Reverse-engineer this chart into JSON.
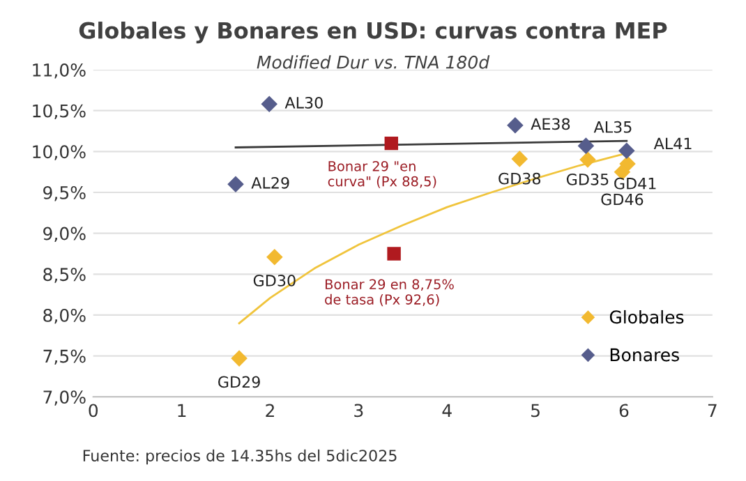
{
  "chart_data": {
    "type": "scatter",
    "title": "Globales y Bonares en USD: curvas contra MEP",
    "subtitle": "Modified Dur vs. TNA 180d",
    "series": [
      {
        "name": "Globales",
        "color": "#f2b930",
        "marker": "diamond",
        "x": [
          1.65,
          2.05,
          4.82,
          5.59,
          6.04,
          5.98
        ],
        "values": [
          7.47,
          8.71,
          9.91,
          9.9,
          9.85,
          9.75
        ]
      },
      {
        "name": "Bonares",
        "color": "#565d8c",
        "marker": "diamond",
        "x": [
          1.99,
          1.61,
          4.77,
          5.57,
          6.03
        ],
        "values": [
          10.58,
          9.6,
          10.32,
          10.07,
          10.01
        ]
      },
      {
        "color": "#b01a1f",
        "marker": "square",
        "x": [
          3.37,
          3.4
        ],
        "values": [
          10.1,
          8.75
        ]
      },
      {
        "type": "line",
        "color": "#3a3a3a",
        "marker": "none",
        "x": [
          1.61,
          6.03
        ],
        "values": [
          10.05,
          10.13
        ]
      },
      {
        "type": "line",
        "color": "#f0c43c",
        "marker": "none",
        "x": [
          1.65,
          2.0,
          2.5,
          3.0,
          3.5,
          4.0,
          4.5,
          5.0,
          5.5,
          6.03
        ],
        "values": [
          7.9,
          8.21,
          8.57,
          8.86,
          9.1,
          9.32,
          9.5,
          9.67,
          9.83,
          9.98
        ]
      }
    ],
    "xlim": [
      0,
      7
    ],
    "xticks": [
      0,
      1,
      2,
      3,
      4,
      5,
      6,
      7
    ],
    "ylim": [
      7,
      11
    ],
    "yticks": [
      {
        "value": 7,
        "label": "7,0%"
      },
      {
        "value": 7.5,
        "label": "7,5%"
      },
      {
        "value": 8,
        "label": "8,0%"
      },
      {
        "value": 8.5,
        "label": "8,5%"
      },
      {
        "value": 9,
        "label": "9,0%"
      },
      {
        "value": 9.5,
        "label": "9,5%"
      },
      {
        "value": 10,
        "label": "10,0%"
      },
      {
        "value": 10.5,
        "label": "10,5%"
      },
      {
        "value": 11,
        "label": "11,0%"
      }
    ],
    "grid": "y",
    "legend": "lower right",
    "annotations": [
      {
        "text": "AL30",
        "x": 1.99,
        "y": 10.58
      },
      {
        "text": "AL29",
        "x": 1.61,
        "y": 9.6
      },
      {
        "text": "AE38",
        "x": 4.77,
        "y": 10.32
      },
      {
        "text": "AL35",
        "x": 5.57,
        "y": 10.07
      },
      {
        "text": "AL41",
        "x": 6.03,
        "y": 10.01
      },
      {
        "text": "GD29",
        "x": 1.65,
        "y": 7.47
      },
      {
        "text": "GD30",
        "x": 2.05,
        "y": 8.71
      },
      {
        "text": "GD38",
        "x": 4.82,
        "y": 9.91
      },
      {
        "text": "GD35",
        "x": 5.59,
        "y": 9.9
      },
      {
        "text": "GD41",
        "x": 6.04,
        "y": 9.85
      },
      {
        "text": "GD46",
        "x": 5.98,
        "y": 9.75
      },
      {
        "text": "Bonar 29 \"en\ncurva\" (Px 88,5)",
        "x": 3.37,
        "y": 10.1
      },
      {
        "text": "Bonar 29 en 8,75%\nde tasa (Px 92,6)",
        "x": 3.4,
        "y": 8.75
      },
      "Fuente: precios de 14.35hs del 5dic2025"
    ]
  }
}
